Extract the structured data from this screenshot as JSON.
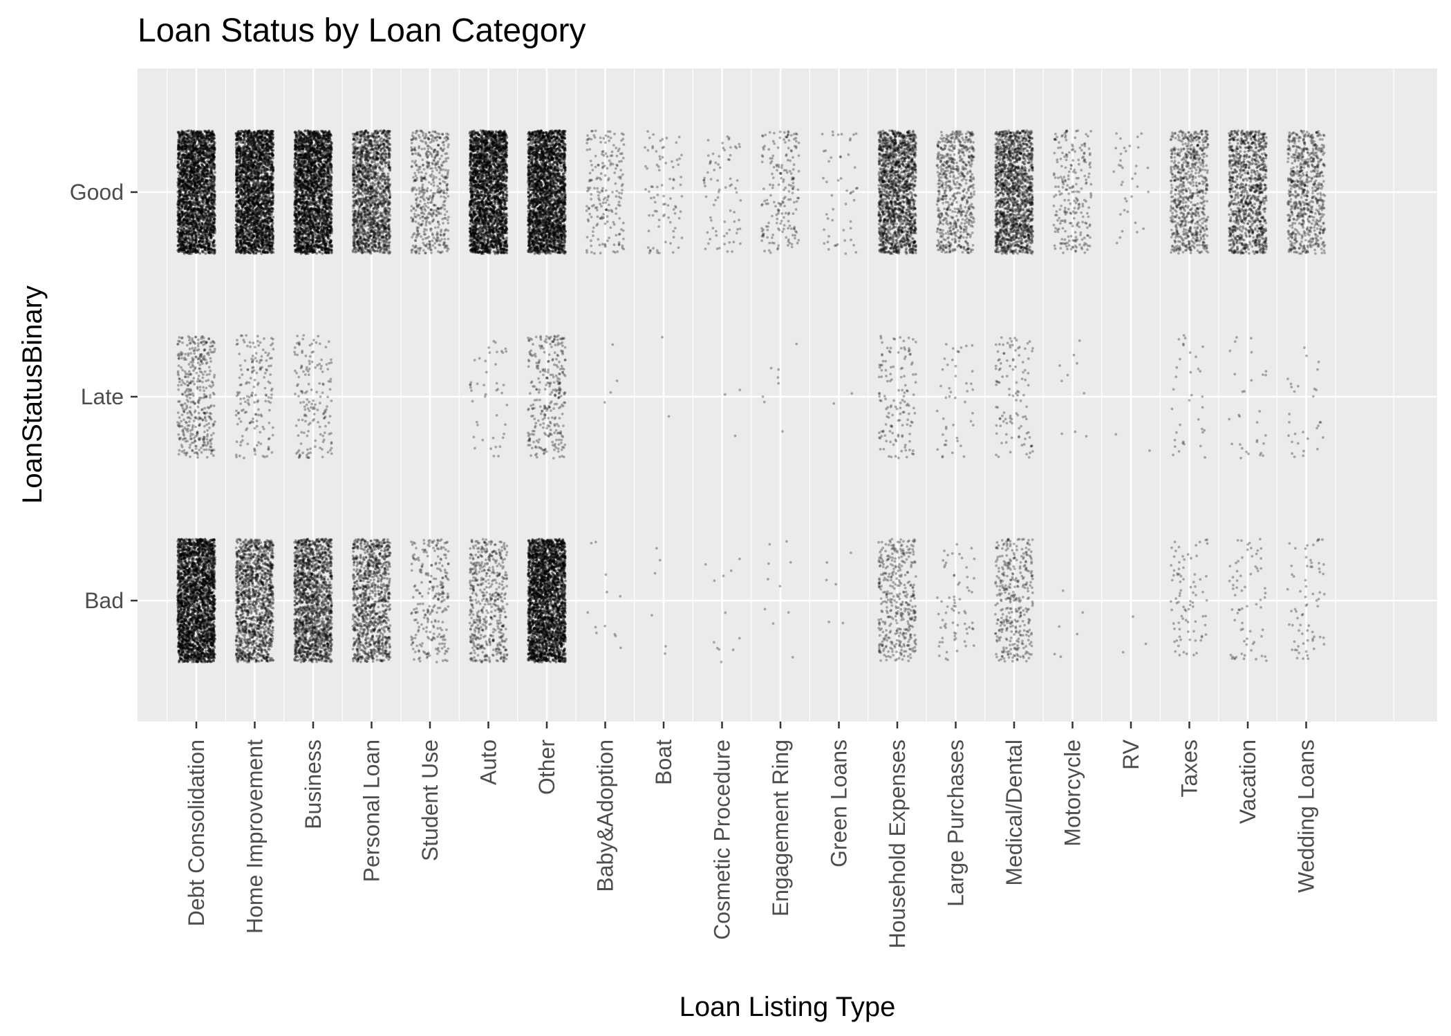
{
  "chart_data": {
    "type": "scatter",
    "subtype": "jitter",
    "title": "Loan Status by Loan Category",
    "xlabel": "Loan Listing Type",
    "ylabel": "LoanStatusBinary",
    "categories": [
      "Debt Consolidation",
      "Home Improvement",
      "Business",
      "Personal Loan",
      "Student Use",
      "Auto",
      "Other",
      "Baby&Adoption",
      "Boat",
      "Cosmetic Procedure",
      "Engagement Ring",
      "Green Loans",
      "Household Expenses",
      "Large Purchases",
      "Medical/Dental",
      "Motorcycle",
      "RV",
      "Taxes",
      "Vacation",
      "Wedding Loans"
    ],
    "y_levels": [
      "Bad",
      "Late",
      "Good"
    ],
    "approx_point_counts": {
      "Good": [
        9000,
        3900,
        4200,
        1600,
        520,
        2600,
        7000,
        200,
        85,
        75,
        190,
        50,
        1600,
        650,
        1500,
        240,
        35,
        720,
        950,
        700
      ],
      "Late": [
        420,
        170,
        160,
        0,
        0,
        45,
        300,
        4,
        2,
        3,
        8,
        2,
        140,
        45,
        110,
        10,
        2,
        35,
        30,
        30
      ],
      "Bad": [
        2600,
        1300,
        1600,
        950,
        260,
        520,
        2800,
        12,
        6,
        12,
        10,
        6,
        400,
        70,
        360,
        6,
        3,
        85,
        70,
        70
      ]
    },
    "point_color": "#000000",
    "grid": true,
    "panel_background": "#ebebeb",
    "legend": "none"
  }
}
